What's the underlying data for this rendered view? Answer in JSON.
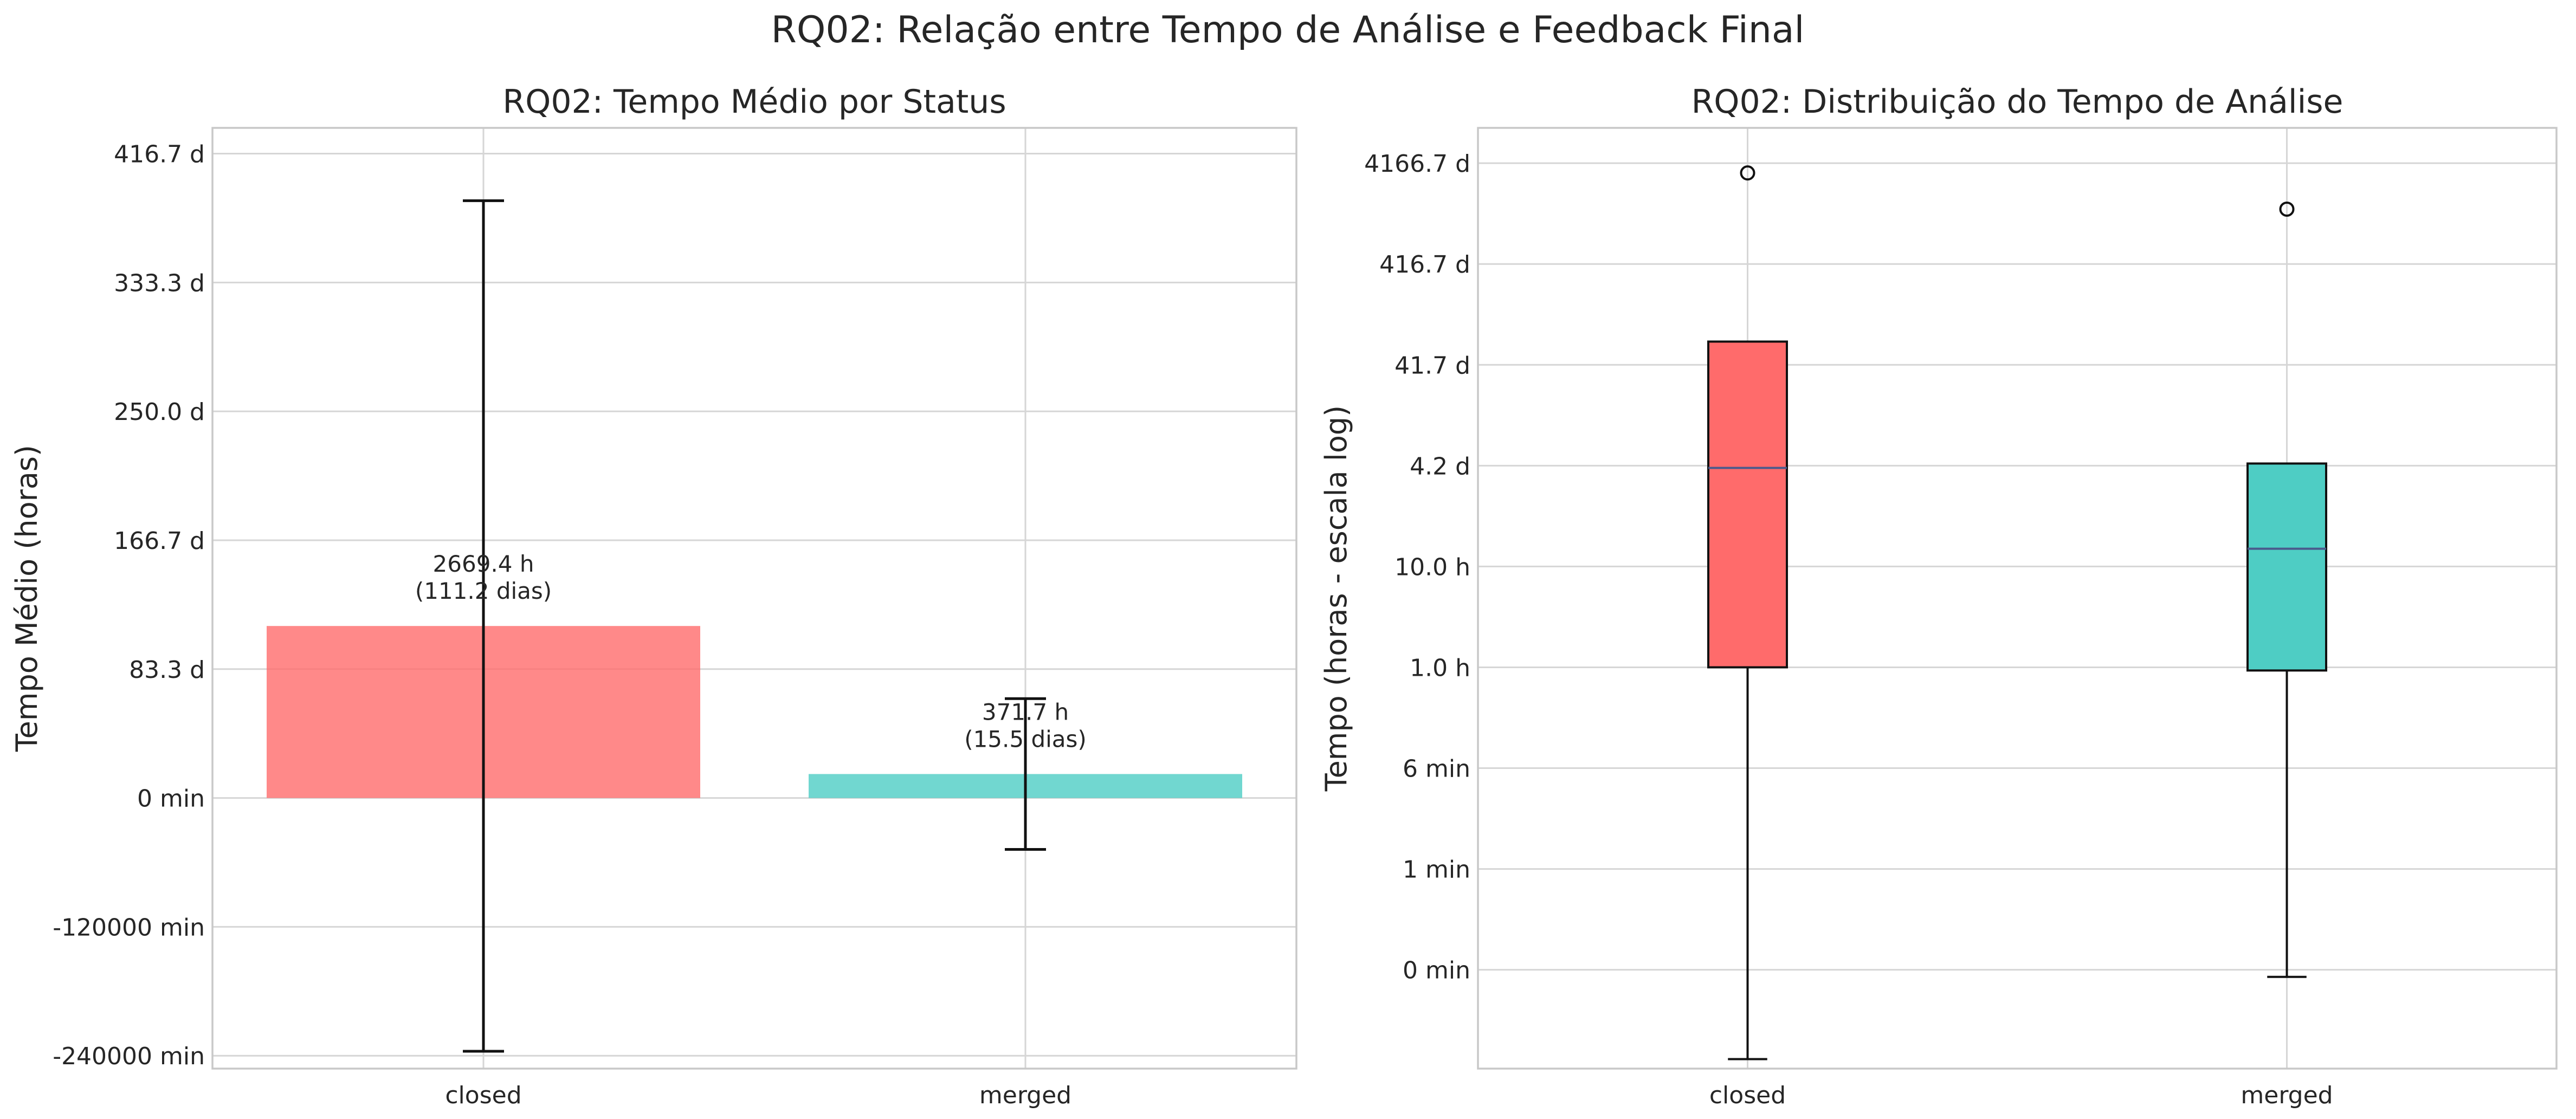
{
  "figure": {
    "suptitle": "RQ02: Relação entre Tempo de Análise e Feedback Final"
  },
  "chart_data": [
    {
      "type": "bar",
      "title": "RQ02: Tempo Médio por Status",
      "xlabel": "",
      "ylabel": "Tempo Médio (horas)",
      "categories": [
        "closed",
        "merged"
      ],
      "values": [
        2669.4,
        371.7
      ],
      "error": [
        6600,
        1170
      ],
      "ylim": [
        -4200,
        10400
      ],
      "yticks": [
        {
          "value": -4000,
          "label": "-240000 min"
        },
        {
          "value": -2000,
          "label": "-120000 min"
        },
        {
          "value": 0,
          "label": "0 min"
        },
        {
          "value": 2000,
          "label": "83.3 d"
        },
        {
          "value": 4000,
          "label": "166.7 d"
        },
        {
          "value": 6000,
          "label": "250.0 d"
        },
        {
          "value": 8000,
          "label": "333.3 d"
        },
        {
          "value": 10000,
          "label": "416.7 d"
        }
      ],
      "annotations": [
        {
          "line1": "2669.4 h",
          "line2": "(111.2 dias)"
        },
        {
          "line1": "371.7 h",
          "line2": "(15.5 dias)"
        }
      ],
      "colors": [
        "#ff6b6b",
        "#4ecdc4"
      ],
      "grid": true
    },
    {
      "type": "box",
      "title": "RQ02: Distribuição do Tempo de Análise",
      "xlabel": "",
      "ylabel": "Tempo (horas - escala log)",
      "yscale": "log",
      "categories": [
        "closed",
        "merged"
      ],
      "ylim_log10": [
        -3.98,
        5.35
      ],
      "yticks": [
        {
          "value": 0.001,
          "label": "0 min"
        },
        {
          "value": 0.01,
          "label": "1 min"
        },
        {
          "value": 0.1,
          "label": "6 min"
        },
        {
          "value": 1,
          "label": "1.0 h"
        },
        {
          "value": 10,
          "label": "10.0 h"
        },
        {
          "value": 100,
          "label": "4.2 d"
        },
        {
          "value": 1000,
          "label": "41.7 d"
        },
        {
          "value": 10000,
          "label": "416.7 d"
        },
        {
          "value": 100000,
          "label": "4166.7 d"
        }
      ],
      "boxes": [
        {
          "whisker_low": 0.00013,
          "q1": 1.0,
          "median": 95,
          "q3": 1700,
          "whisker_high": 1700,
          "outliers": [
            80000
          ]
        },
        {
          "whisker_low": 0.00085,
          "q1": 0.93,
          "median": 15,
          "q3": 105,
          "whisker_high": 105,
          "outliers": [
            35000
          ]
        }
      ],
      "colors": [
        "#ff6b6b",
        "#4ecdc4"
      ],
      "median_color": "#4a5a8c",
      "grid": true
    }
  ]
}
